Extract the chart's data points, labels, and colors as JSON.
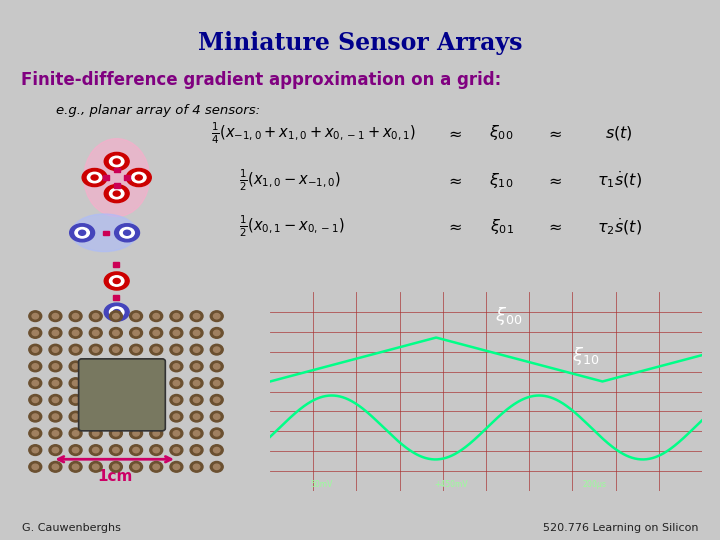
{
  "title": "Miniature Sensor Arrays",
  "subtitle": "Finite-difference gradient approximation on a grid:",
  "eg_text": "e.g., planar array of 4 sensors:",
  "bg_color": "#c8c8c8",
  "slide_bg": "#ffffff",
  "title_color": "#00008B",
  "subtitle_color": "#800080",
  "footer_left": "G. Cauwenberghs",
  "footer_right": "520.776 Learning on Silicon",
  "scale_bar": "1cm",
  "osc_bg": "#8b0000",
  "grid_color": "#aa3333",
  "signal_color": "#00ff88",
  "pcb_bg": "#a08060",
  "pcb_hole": "#6b5030"
}
